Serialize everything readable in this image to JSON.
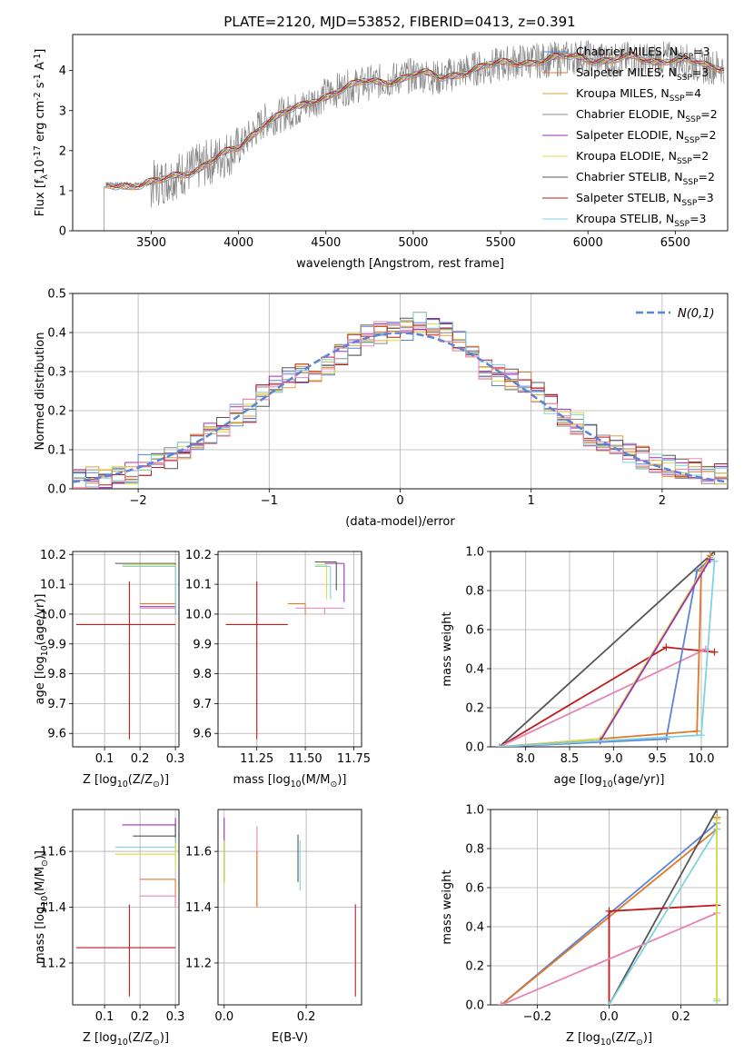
{
  "title": "PLATE=2120, MJD=53852, FIBERID=0413, z=0.391",
  "colors": {
    "Chabrier MILES": "#5b84d6",
    "Salpeter MILES": "#e0782a",
    "Kroupa MILES": "#d9a341",
    "Chabrier ELODIE": "#8a8a8a",
    "Salpeter ELODIE": "#9d2fbf",
    "Kroupa ELODIE": "#d7df3c",
    "Chabrier STELIB": "#555555",
    "Salpeter STELIB": "#c01a1a",
    "Kroupa STELIB": "#7fd3e0",
    "pink": "#e585b5",
    "gaussian": "#5b84d6"
  },
  "chart_data": [
    {
      "type": "line",
      "id": "spectrum",
      "xlabel": "wavelength [Angstrom, rest frame]",
      "ylabel": "Flux [f$_\\lambda$10$^{-17}$ erg cm$^{-2}$ s$^{-1}$ A$^{-1}$]",
      "xlim": [
        3050,
        6800
      ],
      "ylim": [
        0,
        4.9
      ],
      "xticks": [
        3500,
        4000,
        4500,
        5000,
        5500,
        6000,
        6500
      ],
      "yticks": [
        0,
        1,
        2,
        3,
        4
      ],
      "grid": false,
      "legend_position": "top-right",
      "legend": [
        {
          "label": "Chabrier MILES, N$_{SSP}$=3",
          "color": "#5b84d6"
        },
        {
          "label": "Salpeter MILES, N$_{SSP}$=3",
          "color": "#e0782a"
        },
        {
          "label": "Kroupa MILES, N$_{SSP}$=4",
          "color": "#d9a341"
        },
        {
          "label": "Chabrier ELODIE, N$_{SSP}$=2",
          "color": "#8a8a8a"
        },
        {
          "label": "Salpeter ELODIE, N$_{SSP}$=2",
          "color": "#9d2fbf"
        },
        {
          "label": "Kroupa ELODIE, N$_{SSP}$=2",
          "color": "#d7df3c"
        },
        {
          "label": "Chabrier STELIB, N$_{SSP}$=2",
          "color": "#555555"
        },
        {
          "label": "Salpeter STELIB, N$_{SSP}$=3",
          "color": "#c01a1a"
        },
        {
          "label": "Kroupa STELIB, N$_{SSP}$=3",
          "color": "#7fd3e0"
        }
      ],
      "continuum": {
        "x": [
          3230,
          3260,
          3350,
          3450,
          3550,
          3650,
          3750,
          3850,
          3950,
          4000,
          4050,
          4150,
          4250,
          4350,
          4450,
          4550,
          4650,
          4750,
          4850,
          4950,
          5050,
          5150,
          5250,
          5350,
          5450,
          5550,
          5650,
          5750,
          5850,
          5950,
          6050,
          6150,
          6250,
          6350,
          6450,
          6550,
          6650
        ],
        "y": [
          1.1,
          1.15,
          1.18,
          1.15,
          1.2,
          1.4,
          1.55,
          1.75,
          1.95,
          2.05,
          2.3,
          2.75,
          2.9,
          3.05,
          3.3,
          3.5,
          3.6,
          3.7,
          3.75,
          3.85,
          3.9,
          3.8,
          3.95,
          4.05,
          4.1,
          4.2,
          4.25,
          4.25,
          4.3,
          4.35,
          4.3,
          4.25,
          4.3,
          4.25,
          4.3,
          4.25,
          4.1
        ]
      }
    },
    {
      "type": "line",
      "id": "residuals",
      "xlabel": "(data-model)/error",
      "ylabel": "Normed distribution",
      "xlim": [
        -2.5,
        2.5
      ],
      "ylim": [
        0,
        0.5
      ],
      "xticks": [
        -2,
        -1,
        0,
        1,
        2
      ],
      "yticks": [
        0.0,
        0.1,
        0.2,
        0.3,
        0.4,
        0.5
      ],
      "grid": true,
      "legend_position": "top-right",
      "legend": [
        {
          "label": "$\\mathcal{N}(0,1)$",
          "style": "dashed"
        }
      ],
      "histogram_envelope": {
        "bin_centers": [
          -2.45,
          -2.35,
          -2.25,
          -2.15,
          -2.05,
          -1.95,
          -1.85,
          -1.75,
          -1.65,
          -1.55,
          -1.45,
          -1.35,
          -1.25,
          -1.15,
          -1.05,
          -0.95,
          -0.85,
          -0.75,
          -0.65,
          -0.55,
          -0.45,
          -0.35,
          -0.25,
          -0.15,
          -0.05,
          0.05,
          0.15,
          0.25,
          0.35,
          0.45,
          0.55,
          0.65,
          0.75,
          0.85,
          0.95,
          1.05,
          1.15,
          1.25,
          1.35,
          1.45,
          1.55,
          1.65,
          1.75,
          1.85,
          1.95,
          2.05,
          2.15,
          2.25,
          2.35,
          2.45
        ],
        "values": [
          0.02,
          0.03,
          0.03,
          0.04,
          0.04,
          0.06,
          0.07,
          0.08,
          0.1,
          0.11,
          0.14,
          0.16,
          0.19,
          0.2,
          0.24,
          0.26,
          0.28,
          0.29,
          0.3,
          0.32,
          0.34,
          0.37,
          0.39,
          0.4,
          0.4,
          0.41,
          0.43,
          0.42,
          0.4,
          0.38,
          0.34,
          0.3,
          0.29,
          0.28,
          0.27,
          0.25,
          0.22,
          0.19,
          0.17,
          0.14,
          0.12,
          0.11,
          0.09,
          0.08,
          0.07,
          0.06,
          0.05,
          0.05,
          0.04,
          0.04
        ]
      }
    },
    {
      "type": "scatter",
      "id": "age-vs-Z",
      "xlabel": "Z [log$_{10}$($Z/Z_\\odot$)]",
      "ylabel": "age  [log$_{10}$($age/yr$)]",
      "xlim": [
        0.01,
        0.31
      ],
      "ylim": [
        9.555,
        10.21
      ],
      "xticks": [
        0.1,
        0.2,
        0.3
      ],
      "yticks": [
        9.6,
        9.7,
        9.8,
        9.9,
        10.0,
        10.1,
        10.2
      ],
      "grid": true,
      "points": [
        {
          "x": 0.17,
          "xlo": 0.02,
          "xhi": 0.3,
          "y": 9.965,
          "ylo": 9.58,
          "yhi": 10.11,
          "color": "#c01a1a"
        },
        {
          "x": 0.3,
          "xlo": 0.13,
          "xhi": 0.3,
          "y": 10.17,
          "ylo": 10.01,
          "yhi": 10.17,
          "color": "#555555"
        },
        {
          "x": 0.3,
          "xlo": 0.15,
          "xhi": 0.3,
          "y": 10.165,
          "ylo": 10.0,
          "yhi": 10.165,
          "color": "#d7df3c"
        },
        {
          "x": 0.3,
          "xlo": 0.2,
          "xhi": 0.3,
          "y": 10.035,
          "ylo": 10.0,
          "yhi": 10.035,
          "color": "#e0782a"
        },
        {
          "x": 0.3,
          "xlo": 0.2,
          "xhi": 0.3,
          "y": 10.025,
          "ylo": 10.0,
          "yhi": 10.025,
          "color": "#9d2fbf"
        },
        {
          "x": 0.3,
          "xlo": 0.2,
          "xhi": 0.3,
          "y": 10.02,
          "ylo": 10.0,
          "yhi": 10.02,
          "color": "#e585b5"
        },
        {
          "x": 0.3,
          "xlo": 0.15,
          "xhi": 0.3,
          "y": 10.16,
          "ylo": 10.0,
          "yhi": 10.16,
          "color": "#7fd3e0"
        }
      ]
    },
    {
      "type": "scatter",
      "id": "age-vs-mass",
      "xlabel": "mass [log$_{10}$($M/M_\\odot$)]",
      "ylabel": "",
      "xlim": [
        11.05,
        11.79
      ],
      "ylim": [
        9.555,
        10.21
      ],
      "xticks": [
        11.25,
        11.5,
        11.75
      ],
      "xticklabels": [
        "11.25",
        "11.50",
        "11.75"
      ],
      "yticks": [
        9.6,
        9.7,
        9.8,
        9.9,
        10.0,
        10.1,
        10.2
      ],
      "grid": true,
      "points": [
        {
          "x": 11.25,
          "xlo": 11.09,
          "xhi": 11.41,
          "y": 9.965,
          "ylo": 9.58,
          "yhi": 10.11,
          "color": "#c01a1a"
        },
        {
          "x": 11.66,
          "xlo": 11.55,
          "xhi": 11.66,
          "y": 10.175,
          "ylo": 10.08,
          "yhi": 10.175,
          "color": "#555555"
        },
        {
          "x": 11.61,
          "xlo": 11.55,
          "xhi": 11.61,
          "y": 10.165,
          "ylo": 10.05,
          "yhi": 10.165,
          "color": "#d7df3c"
        },
        {
          "x": 11.7,
          "xlo": 11.6,
          "xhi": 11.7,
          "y": 10.17,
          "ylo": 10.04,
          "yhi": 10.17,
          "color": "#9d2fbf"
        },
        {
          "x": 11.5,
          "xlo": 11.41,
          "xhi": 11.5,
          "y": 10.035,
          "ylo": 10.0,
          "yhi": 10.035,
          "color": "#e0782a"
        },
        {
          "x": 11.6,
          "xlo": 11.45,
          "xhi": 11.7,
          "y": 10.02,
          "ylo": 10.0,
          "yhi": 10.02,
          "color": "#e585b5"
        },
        {
          "x": 11.63,
          "xlo": 11.55,
          "xhi": 11.63,
          "y": 10.16,
          "ylo": 10.05,
          "yhi": 10.16,
          "color": "#7fd3e0"
        }
      ]
    },
    {
      "type": "line",
      "id": "massweight-vs-age",
      "xlabel": "age  [log$_{10}$($age/yr$)]",
      "ylabel": "mass weight",
      "xlim": [
        7.6,
        10.3
      ],
      "ylim": [
        0,
        1
      ],
      "xticks": [
        8.0,
        8.5,
        9.0,
        9.5,
        10.0
      ],
      "xticklabels": [
        "8.0",
        "8.5",
        "9.0",
        "9.5",
        "10.0"
      ],
      "yticks": [
        0.0,
        0.2,
        0.4,
        0.6,
        0.8,
        1.0
      ],
      "grid": true,
      "series": [
        {
          "color": "#555555",
          "x": [
            7.7,
            10.15
          ],
          "y": [
            0.0,
            1.0
          ]
        },
        {
          "color": "#c01a1a",
          "x": [
            7.7,
            9.6,
            10.15
          ],
          "y": [
            0.0,
            0.51,
            0.485
          ]
        },
        {
          "color": "#e585b5",
          "x": [
            7.7,
            10.05
          ],
          "y": [
            0.0,
            0.5
          ]
        },
        {
          "color": "#5b84d6",
          "x": [
            7.7,
            9.6,
            9.95,
            10.1
          ],
          "y": [
            0.0,
            0.04,
            0.9,
            0.96
          ]
        },
        {
          "color": "#e0782a",
          "x": [
            7.7,
            9.95,
            10.0,
            10.1
          ],
          "y": [
            0.0,
            0.08,
            0.9,
            0.98
          ]
        },
        {
          "color": "#d7df3c",
          "x": [
            7.7,
            8.85,
            10.1
          ],
          "y": [
            0.0,
            0.04,
            0.97
          ]
        },
        {
          "color": "#9d2fbf",
          "x": [
            7.7,
            8.85,
            10.1
          ],
          "y": [
            0.0,
            0.03,
            0.96
          ]
        },
        {
          "color": "#7fd3e0",
          "x": [
            7.7,
            10.0,
            10.15
          ],
          "y": [
            0.0,
            0.06,
            0.95
          ]
        }
      ]
    },
    {
      "type": "scatter",
      "id": "mass-vs-Z",
      "xlabel": "Z [log$_{10}$($Z/Z_\\odot$)]",
      "ylabel": "mass [log$_{10}$($M/M_\\odot$)]",
      "xlim": [
        0.01,
        0.31
      ],
      "ylim": [
        11.05,
        11.75
      ],
      "xticks": [
        0.1,
        0.2,
        0.3
      ],
      "yticks": [
        11.2,
        11.4,
        11.6
      ],
      "grid": true,
      "points": [
        {
          "x": 0.17,
          "xlo": 0.02,
          "xhi": 0.3,
          "y": 11.255,
          "ylo": 11.08,
          "yhi": 11.41,
          "color": "#c01a1a"
        },
        {
          "x": 0.3,
          "xlo": 0.15,
          "xhi": 0.3,
          "y": 11.695,
          "ylo": 11.63,
          "yhi": 11.72,
          "color": "#9d2fbf"
        },
        {
          "x": 0.3,
          "xlo": 0.18,
          "xhi": 0.3,
          "y": 11.655,
          "ylo": 11.6,
          "yhi": 11.7,
          "color": "#555555"
        },
        {
          "x": 0.3,
          "xlo": 0.13,
          "xhi": 0.3,
          "y": 11.615,
          "ylo": 11.55,
          "yhi": 11.65,
          "color": "#7fd3e0"
        },
        {
          "x": 0.3,
          "xlo": 0.13,
          "xhi": 0.3,
          "y": 11.59,
          "ylo": 11.53,
          "yhi": 11.63,
          "color": "#d7df3c"
        },
        {
          "x": 0.3,
          "xlo": 0.2,
          "xhi": 0.3,
          "y": 11.5,
          "ylo": 11.41,
          "yhi": 11.5,
          "color": "#e0782a"
        },
        {
          "x": 0.3,
          "xlo": 0.2,
          "xhi": 0.3,
          "y": 11.44,
          "ylo": 11.4,
          "yhi": 11.44,
          "color": "#e585b5"
        }
      ]
    },
    {
      "type": "scatter",
      "id": "mass-vs-EBV",
      "xlabel": "E(B-V)",
      "ylabel": "",
      "xlim": [
        -0.015,
        0.335
      ],
      "ylim": [
        11.05,
        11.75
      ],
      "xticks": [
        0.0,
        0.2
      ],
      "xticklabels": [
        "0.0",
        "0.2"
      ],
      "yticks": [
        11.2,
        11.4,
        11.6
      ],
      "grid": true,
      "points": [
        {
          "x": 0.0,
          "y": 11.6,
          "ylo": 11.49,
          "yhi": 11.72,
          "color": "#9d2fbf"
        },
        {
          "x": 0.0,
          "y": 11.58,
          "ylo": 11.48,
          "yhi": 11.64,
          "color": "#d7df3c"
        },
        {
          "x": 0.08,
          "y": 11.55,
          "ylo": 11.4,
          "yhi": 11.69,
          "color": "#e585b5"
        },
        {
          "x": 0.08,
          "y": 11.5,
          "ylo": 11.4,
          "yhi": 11.6,
          "color": "#e0782a"
        },
        {
          "x": 0.18,
          "y": 11.58,
          "ylo": 11.49,
          "yhi": 11.66,
          "color": "#555555"
        },
        {
          "x": 0.185,
          "y": 11.55,
          "ylo": 11.46,
          "yhi": 11.64,
          "color": "#7fd3e0"
        },
        {
          "x": 0.32,
          "y": 11.255,
          "ylo": 11.08,
          "yhi": 11.41,
          "color": "#c01a1a"
        }
      ]
    },
    {
      "type": "line",
      "id": "massweight-vs-Z",
      "xlabel": "Z [log$_{10}$($Z/Z_\\odot$)]",
      "ylabel": "mass weight",
      "xlim": [
        -0.33,
        0.33
      ],
      "ylim": [
        0,
        1
      ],
      "xticks": [
        -0.2,
        0.0,
        0.2
      ],
      "xticklabels": [
        "−0.2",
        "0.0",
        "0.2"
      ],
      "yticks": [
        0.0,
        0.2,
        0.4,
        0.6,
        0.8,
        1.0
      ],
      "grid": true,
      "series": [
        {
          "color": "#5b84d6",
          "x": [
            -0.3,
            0.3,
            0.3
          ],
          "y": [
            0.0,
            0.93,
            0.96
          ]
        },
        {
          "color": "#e0782a",
          "x": [
            -0.3,
            0.3,
            0.3
          ],
          "y": [
            0.0,
            0.9,
            0.96
          ]
        },
        {
          "color": "#555555",
          "x": [
            0.0,
            0.3
          ],
          "y": [
            0.0,
            1.0
          ]
        },
        {
          "color": "#c01a1a",
          "x": [
            0.0,
            0.0,
            0.3
          ],
          "y": [
            0.0,
            0.48,
            0.51
          ]
        },
        {
          "color": "#e585b5",
          "x": [
            -0.3,
            0.3
          ],
          "y": [
            0.0,
            0.47
          ]
        },
        {
          "color": "#7fd3e0",
          "x": [
            0.0,
            0.3,
            0.3
          ],
          "y": [
            0.0,
            0.9,
            0.02
          ]
        },
        {
          "color": "#d7df3c",
          "x": [
            0.3,
            0.3
          ],
          "y": [
            0.03,
            0.95
          ]
        }
      ]
    }
  ]
}
